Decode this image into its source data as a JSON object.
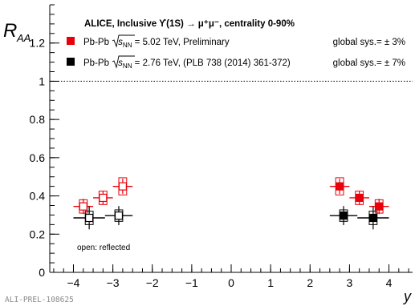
{
  "chart_data": {
    "type": "scatter",
    "title": "ALICE, Inclusive ϒ(1S) → μ⁺μ⁻, centrality 0-90%",
    "xlabel": "y",
    "ylabel": "R_AA",
    "xlim": [
      -4.6,
      4.6
    ],
    "ylim": [
      0,
      1.4
    ],
    "x_ticks": [
      "−4",
      "−3",
      "−2",
      "−1",
      "0",
      "1",
      "2",
      "3",
      "4"
    ],
    "y_ticks": [
      "0",
      "0.2",
      "0.4",
      "0.6",
      "0.8",
      "1",
      "1.2"
    ],
    "reference_line": 1,
    "series": [
      {
        "name": "Pb-Pb √sNN = 5.02 TeV, Preliminary",
        "label_parts": [
          "Pb-Pb ",
          "s",
          "NN",
          " = 5.02 TeV, Preliminary"
        ],
        "global_sys": "global sys.= ± 3%",
        "color": "#e8000b",
        "points": [
          {
            "x": 2.75,
            "y": 0.45,
            "xerr": 0.25,
            "stat": 0.04,
            "sys": 0.045
          },
          {
            "x": 3.25,
            "y": 0.39,
            "xerr": 0.25,
            "stat": 0.035,
            "sys": 0.035
          },
          {
            "x": 3.75,
            "y": 0.345,
            "xerr": 0.25,
            "stat": 0.04,
            "sys": 0.035
          }
        ],
        "reflected": [
          {
            "x": -2.75,
            "y": 0.45,
            "xerr": 0.25,
            "stat": 0.04,
            "sys": 0.045
          },
          {
            "x": -3.25,
            "y": 0.39,
            "xerr": 0.25,
            "stat": 0.035,
            "sys": 0.035
          },
          {
            "x": -3.75,
            "y": 0.345,
            "xerr": 0.25,
            "stat": 0.04,
            "sys": 0.035
          }
        ]
      },
      {
        "name": "Pb-Pb √sNN = 2.76 TeV, (PLB 738 (2014) 361-372)",
        "label_parts": [
          "Pb-Pb ",
          "s",
          "NN",
          " = 2.76 TeV, (PLB 738 (2014) 361-372)"
        ],
        "global_sys": "global sys.= ± 7%",
        "color": "#000000",
        "points": [
          {
            "x": 2.85,
            "y": 0.297,
            "xerr": 0.35,
            "stat": 0.05,
            "sys": 0.03
          },
          {
            "x": 3.6,
            "y": 0.285,
            "xerr": 0.4,
            "stat": 0.06,
            "sys": 0.035
          }
        ],
        "reflected": [
          {
            "x": -2.85,
            "y": 0.297,
            "xerr": 0.35,
            "stat": 0.05,
            "sys": 0.03
          },
          {
            "x": -3.6,
            "y": 0.285,
            "xerr": 0.4,
            "stat": 0.06,
            "sys": 0.035
          }
        ]
      }
    ],
    "annotation": "open: reflected",
    "watermark": "ALI-PREL-108625"
  }
}
